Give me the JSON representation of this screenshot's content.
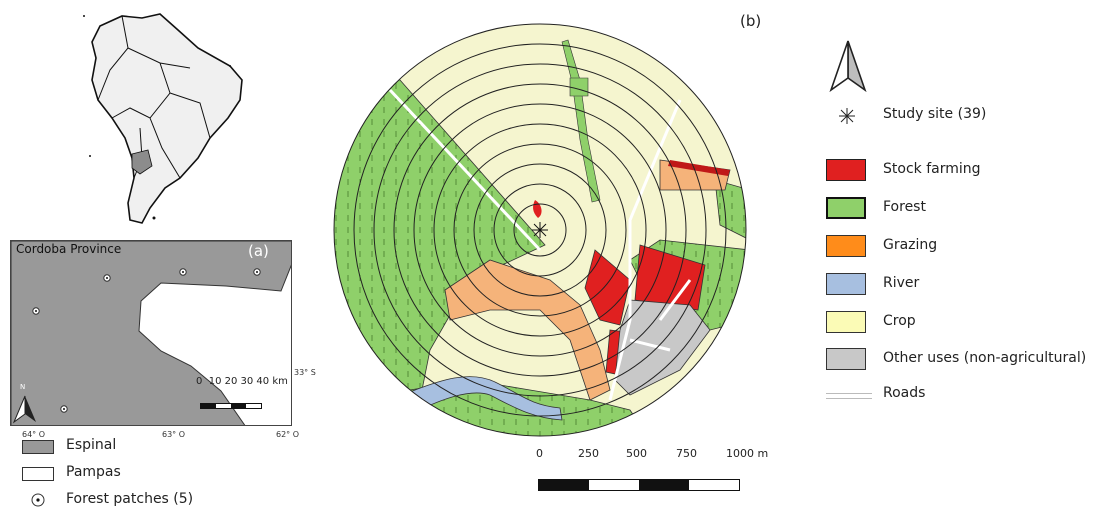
{
  "panel_a": {
    "label": "(a)",
    "province": "Cordoba Province",
    "north": "N",
    "scale_text": "0  10 20 30 40 km",
    "lat": "33° S",
    "lon_ticks": [
      "64° O",
      "63° O",
      "62° O"
    ],
    "legend": [
      {
        "label": "Espinal",
        "color": "#999999",
        "icon": "filled-rect"
      },
      {
        "label": "Pampas",
        "color": "#ffffff",
        "icon": "empty-rect"
      },
      {
        "label": "Forest patches (5)",
        "color": "#ffffff",
        "icon": "dot-circle-icon"
      }
    ]
  },
  "panel_b": {
    "label": "(b)",
    "scale_ticks": [
      "0",
      "250",
      "500",
      "750",
      "1000 m"
    ],
    "legend": [
      {
        "label": "Study site (39)",
        "icon": "asterisk-icon"
      },
      {
        "label": "Stock farming",
        "color": "#e02020"
      },
      {
        "label": "Forest",
        "color": "#8fd06a"
      },
      {
        "label": "Grazing",
        "color": "#ff8c1a"
      },
      {
        "label": "River",
        "color": "#a7bfe0"
      },
      {
        "label": "Crop",
        "color": "#fbfbb6"
      },
      {
        "label": "Other uses (non-agricultural)",
        "color": "#c8c8c8"
      },
      {
        "label": "Roads",
        "icon": "road-line"
      }
    ]
  }
}
